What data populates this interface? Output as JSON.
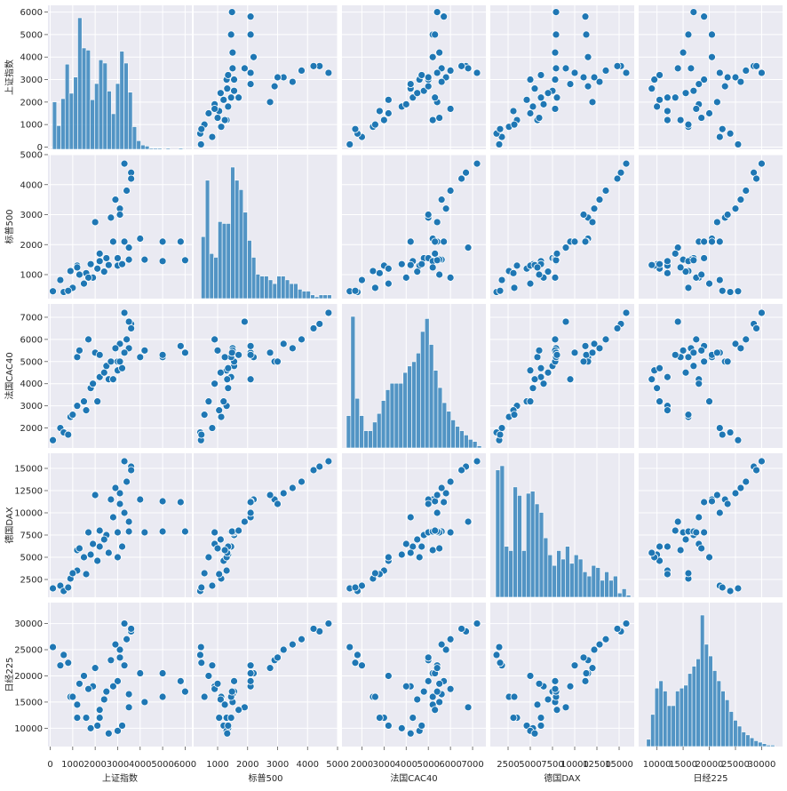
{
  "figure": {
    "type": "pairplot",
    "variables": [
      "上证指数",
      "标普500",
      "法国CAC40",
      "德国DAX",
      "日经225"
    ],
    "colors": {
      "background": "#EAEAF2",
      "grid": "#FFFFFF",
      "marker": "#1F77B4",
      "marker_edge": "#FFFFFF",
      "text": "#262626"
    }
  },
  "chart_data": {
    "type": "scatter",
    "variables": [
      "上证指数",
      "标普500",
      "法国CAC40",
      "德国DAX",
      "日经225"
    ],
    "grid": true,
    "diagonal": "histogram",
    "ranges": {
      "上证指数": [
        -100,
        6300
      ],
      "标普500": [
        200,
        5000
      ],
      "法国CAC40": [
        1100,
        7600
      ],
      "德国DAX": [
        500,
        16700
      ],
      "日经225": [
        6500,
        34000
      ]
    },
    "ticks": {
      "上证指数": [
        0,
        1000,
        2000,
        3000,
        4000,
        5000,
        6000
      ],
      "标普500": [
        1000,
        2000,
        3000,
        4000,
        5000
      ],
      "法国CAC40": [
        2000,
        3000,
        4000,
        5000,
        6000,
        7000
      ],
      "德国DAX": [
        2500,
        5000,
        7500,
        10000,
        12500,
        15000
      ],
      "日经225": [
        10000,
        15000,
        20000,
        25000,
        30000
      ]
    },
    "y_ticks_on_diagonal_row": {
      "上证指数": [
        0,
        1000,
        2000,
        3000,
        4000,
        5000,
        6000
      ]
    },
    "histograms": {
      "上证指数": {
        "range": [
          100,
          5900
        ],
        "counts": [
          44,
          22,
          47,
          79,
          52,
          67,
          122,
          94,
          92,
          46,
          61,
          83,
          80,
          54,
          33,
          61,
          91,
          80,
          53,
          21,
          8,
          4,
          3,
          1,
          1,
          1,
          0,
          1,
          0,
          0,
          1
        ]
      },
      "标普500": {
        "range": [
          450,
          4800
        ],
        "counts": [
          33,
          63,
          24,
          22,
          41,
          40,
          40,
          70,
          63,
          58,
          46,
          31,
          22,
          13,
          12,
          12,
          10,
          8,
          12,
          12,
          10,
          8,
          8,
          5,
          4,
          4,
          2,
          1,
          2,
          2,
          2
        ]
      },
      "法国CAC40": {
        "range": [
          1300,
          7400
        ],
        "counts": [
          15,
          61,
          23,
          15,
          8,
          8,
          12,
          16,
          22,
          27,
          30,
          30,
          30,
          35,
          38,
          40,
          44,
          54,
          60,
          48,
          36,
          28,
          21,
          17,
          13,
          10,
          8,
          6,
          4,
          3,
          1
        ]
      },
      "德国DAX": {
        "range": [
          1100,
          16300
        ],
        "counts": [
          60,
          62,
          24,
          22,
          52,
          48,
          22,
          49,
          50,
          44,
          40,
          28,
          20,
          15,
          22,
          18,
          24,
          16,
          20,
          18,
          12,
          10,
          15,
          14,
          8,
          12,
          8,
          10,
          2,
          4,
          1
        ]
      },
      "日经225": {
        "range": [
          8000,
          32500
        ],
        "counts": [
          5,
          22,
          40,
          45,
          38,
          28,
          28,
          38,
          40,
          42,
          50,
          55,
          60,
          90,
          70,
          62,
          52,
          45,
          38,
          32,
          24,
          18,
          14,
          10,
          8,
          6,
          4,
          3,
          2,
          1,
          1
        ]
      }
    },
    "series": [
      {
        "points": [
          [
            120,
            445,
            1450,
            1500,
            25500
          ],
          [
            450,
            820,
            2000,
            1800,
            22000
          ],
          [
            900,
            1120,
            2500,
            2600,
            16000
          ],
          [
            1200,
            1300,
            3000,
            3500,
            12000
          ],
          [
            1800,
            1350,
            3800,
            5300,
            10000
          ],
          [
            2200,
            1450,
            4300,
            6200,
            12000
          ],
          [
            2500,
            1550,
            4800,
            7500,
            17000
          ],
          [
            3000,
            1550,
            5000,
            7800,
            19000
          ],
          [
            3500,
            1500,
            5600,
            7900,
            16500
          ],
          [
            4200,
            1500,
            5500,
            7800,
            15000
          ],
          [
            5000,
            1450,
            5200,
            7900,
            16000
          ],
          [
            6000,
            1480,
            5400,
            7900,
            17000
          ],
          [
            1600,
            1050,
            2800,
            3100,
            12000
          ],
          [
            2100,
            1200,
            3200,
            4600,
            10500
          ],
          [
            3000,
            1300,
            4600,
            5000,
            9500
          ],
          [
            2600,
            1320,
            4200,
            5500,
            9000
          ],
          [
            3200,
            1350,
            4700,
            6200,
            10500
          ],
          [
            2800,
            2100,
            4200,
            9500,
            18000
          ],
          [
            3300,
            2100,
            5400,
            10000,
            22000
          ],
          [
            4000,
            2200,
            5200,
            11500,
            20500
          ],
          [
            5000,
            2100,
            5300,
            11300,
            20500
          ],
          [
            5800,
            2100,
            5700,
            11200,
            19000
          ],
          [
            2700,
            2900,
            5000,
            11500,
            23000
          ],
          [
            3100,
            3200,
            5800,
            12200,
            25000
          ],
          [
            3400,
            3800,
            6000,
            13500,
            27000
          ],
          [
            3600,
            4400,
            6700,
            15200,
            28500
          ],
          [
            3300,
            4700,
            7200,
            15800,
            30000
          ],
          [
            3600,
            4200,
            6500,
            14800,
            29000
          ],
          [
            2900,
            3500,
            5600,
            12800,
            26000
          ],
          [
            3100,
            3000,
            5000,
            11000,
            23500
          ],
          [
            1900,
            900,
            4000,
            6500,
            18000
          ],
          [
            1500,
            700,
            3200,
            5000,
            20000
          ],
          [
            1000,
            560,
            2600,
            3200,
            16000
          ],
          [
            2400,
            1100,
            4500,
            7000,
            15500
          ],
          [
            1200,
            1240,
            5200,
            5800,
            14500
          ],
          [
            1700,
            900,
            6000,
            7800,
            17500
          ],
          [
            600,
            420,
            1800,
            1200,
            24000
          ],
          [
            2000,
            2750,
            5400,
            12000,
            21500
          ],
          [
            3500,
            1900,
            6800,
            9000,
            14000
          ],
          [
            2200,
            1700,
            5300,
            8000,
            13500
          ],
          [
            1300,
            1000,
            5500,
            6000,
            18500
          ],
          [
            800,
            460,
            1700,
            1600,
            22500
          ]
        ]
      }
    ]
  }
}
